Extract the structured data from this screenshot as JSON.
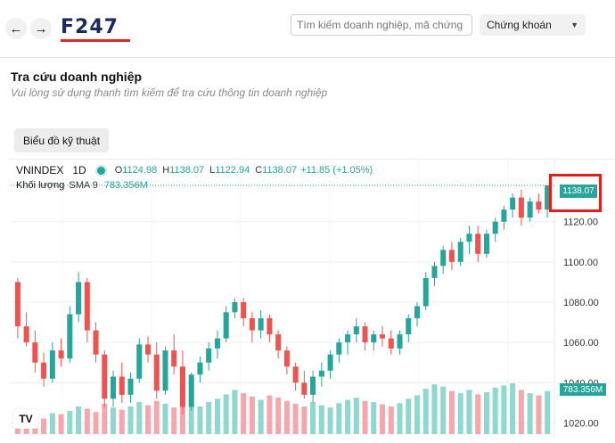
{
  "header": {
    "back_icon": "arrow-left-icon",
    "forward_icon": "arrow-right-icon",
    "logo_text": "F247",
    "search": {
      "placeholder": "Tìm kiếm doanh nghiệp, mã chứng k..."
    },
    "category_select": {
      "value": "Chứng khoán"
    }
  },
  "page": {
    "title": "Tra cứu doanh nghiệp",
    "subtitle": "Vui lòng sử dụng thanh tìm kiếm để tra cứu thông tin doanh nghiệp",
    "tech_chart_button": "Biểu đồ kỹ thuật"
  },
  "chart_legend": {
    "symbol": "VNINDEX",
    "interval": "1D",
    "open_label": "O",
    "open": "1124.98",
    "high_label": "H",
    "high": "1138.07",
    "low_label": "L",
    "low": "1122.94",
    "close_label": "C",
    "close": "1138.07",
    "change": "+11.85 (+1.05%)",
    "volume_label": "Khối lượng",
    "volume_sma": "SMA 9",
    "volume_value": "783.356M",
    "last_price_tag": "1138.07",
    "volume_tag": "783.356M",
    "tv_logo": "TV",
    "colors": {
      "up": "#26a69a",
      "down": "#ef5350",
      "vol_up": "#8fd8cf",
      "vol_down": "#f5a7ad",
      "highlight": "#e01e1e"
    }
  },
  "chart_data": {
    "type": "candlestick",
    "ylim": [
      1018,
      1142
    ],
    "yticks": [
      "1120.00",
      "1100.00",
      "1080.00",
      "1060.00",
      "1040.00",
      "1020.00"
    ],
    "ytick_values": [
      1120,
      1100,
      1080,
      1060,
      1040,
      1020
    ],
    "ohlc": [
      [
        1090,
        1092,
        1062,
        1068
      ],
      [
        1068,
        1075,
        1058,
        1060
      ],
      [
        1060,
        1066,
        1045,
        1050
      ],
      [
        1050,
        1055,
        1038,
        1042
      ],
      [
        1042,
        1060,
        1040,
        1056
      ],
      [
        1056,
        1062,
        1048,
        1052
      ],
      [
        1052,
        1078,
        1050,
        1074
      ],
      [
        1074,
        1095,
        1070,
        1090
      ],
      [
        1090,
        1092,
        1060,
        1066
      ],
      [
        1066,
        1070,
        1050,
        1054
      ],
      [
        1054,
        1056,
        1028,
        1032
      ],
      [
        1032,
        1046,
        1028,
        1043
      ],
      [
        1043,
        1050,
        1030,
        1034
      ],
      [
        1034,
        1045,
        1030,
        1042
      ],
      [
        1042,
        1062,
        1040,
        1059
      ],
      [
        1059,
        1063,
        1050,
        1054
      ],
      [
        1054,
        1060,
        1032,
        1036
      ],
      [
        1036,
        1058,
        1034,
        1056
      ],
      [
        1056,
        1064,
        1044,
        1048
      ],
      [
        1048,
        1056,
        1024,
        1028
      ],
      [
        1028,
        1045,
        1026,
        1044
      ],
      [
        1044,
        1053,
        1040,
        1050
      ],
      [
        1050,
        1060,
        1046,
        1057
      ],
      [
        1057,
        1066,
        1052,
        1062
      ],
      [
        1062,
        1078,
        1060,
        1075
      ],
      [
        1075,
        1082,
        1072,
        1080
      ],
      [
        1080,
        1082,
        1068,
        1072
      ],
      [
        1072,
        1075,
        1060,
        1066
      ],
      [
        1066,
        1076,
        1062,
        1072
      ],
      [
        1072,
        1074,
        1060,
        1064
      ],
      [
        1064,
        1066,
        1052,
        1056
      ],
      [
        1056,
        1058,
        1044,
        1048
      ],
      [
        1048,
        1050,
        1036,
        1040
      ],
      [
        1040,
        1046,
        1032,
        1034
      ],
      [
        1034,
        1046,
        1030,
        1043
      ],
      [
        1043,
        1050,
        1038,
        1046
      ],
      [
        1046,
        1056,
        1042,
        1054
      ],
      [
        1054,
        1062,
        1050,
        1060
      ],
      [
        1060,
        1066,
        1054,
        1064
      ],
      [
        1064,
        1072,
        1060,
        1068
      ],
      [
        1068,
        1070,
        1056,
        1060
      ],
      [
        1060,
        1066,
        1056,
        1064
      ],
      [
        1064,
        1068,
        1058,
        1062
      ],
      [
        1062,
        1066,
        1054,
        1057
      ],
      [
        1057,
        1066,
        1054,
        1064
      ],
      [
        1064,
        1074,
        1060,
        1072
      ],
      [
        1072,
        1080,
        1068,
        1078
      ],
      [
        1078,
        1095,
        1076,
        1092
      ],
      [
        1092,
        1100,
        1088,
        1098
      ],
      [
        1098,
        1108,
        1094,
        1106
      ],
      [
        1106,
        1110,
        1096,
        1100
      ],
      [
        1100,
        1112,
        1098,
        1110
      ],
      [
        1110,
        1118,
        1104,
        1114
      ],
      [
        1114,
        1118,
        1100,
        1104
      ],
      [
        1104,
        1116,
        1102,
        1114
      ],
      [
        1114,
        1122,
        1110,
        1120
      ],
      [
        1120,
        1128,
        1116,
        1126
      ],
      [
        1126,
        1134,
        1122,
        1132
      ],
      [
        1132,
        1136,
        1118,
        1122
      ],
      [
        1122,
        1132,
        1120,
        1130
      ],
      [
        1130,
        1134,
        1124,
        1126
      ],
      [
        1126,
        1138,
        1122,
        1138
      ]
    ],
    "volume": [
      0.35,
      0.3,
      0.32,
      0.28,
      0.38,
      0.36,
      0.42,
      0.5,
      0.46,
      0.4,
      0.55,
      0.48,
      0.44,
      0.5,
      0.58,
      0.52,
      0.6,
      0.55,
      0.48,
      0.62,
      0.56,
      0.5,
      0.58,
      0.64,
      0.72,
      0.8,
      0.74,
      0.68,
      0.62,
      0.7,
      0.66,
      0.6,
      0.55,
      0.5,
      0.58,
      0.52,
      0.48,
      0.56,
      0.62,
      0.66,
      0.6,
      0.58,
      0.54,
      0.5,
      0.56,
      0.64,
      0.7,
      0.82,
      0.9,
      0.86,
      0.78,
      0.74,
      0.8,
      0.72,
      0.76,
      0.84,
      0.88,
      0.92,
      0.8,
      0.74,
      0.7,
      0.78
    ]
  }
}
